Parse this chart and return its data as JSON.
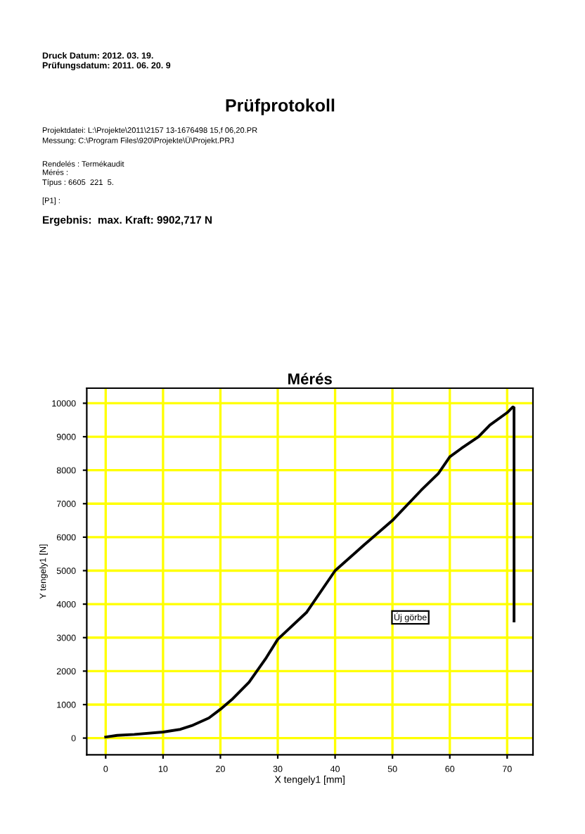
{
  "chart_data": {
    "type": "line",
    "title": "Mérés",
    "xlabel": "X tengely1 [mm]",
    "ylabel": "Y tengely1 [N]",
    "annotations": [
      "Druck Datum: 2012. 03. 19.",
      "Prüfungsdatum: 2011. 06. 20. 9",
      "Prüfprotokoll",
      "Projektdatei: L:\\Projekte\\2011\\2157 13-1676498 15,f 06,20.PR",
      "Messung: C:\\Program Files\\920\\Projekte\\Ü\\Projekt.PRJ",
      "Rendelés : Termékaudit",
      "Mérés :",
      "Típus : 6605  221  5.",
      "[P1] :",
      "Ergebnis:  max. Kraft: 9902,717 N",
      "Új görbe"
    ],
    "series": [
      {
        "color": "#000000",
        "x": [
          0,
          2,
          5,
          10,
          13,
          15,
          18,
          20,
          22,
          25,
          28,
          30,
          35,
          40,
          45,
          50,
          55,
          58,
          60,
          62,
          65,
          67,
          70,
          71,
          71.2,
          71.2
        ],
        "values": [
          30,
          80,
          110,
          180,
          260,
          370,
          600,
          860,
          1150,
          1670,
          2400,
          2950,
          3750,
          5000,
          5760,
          6500,
          7400,
          7900,
          8400,
          8650,
          9000,
          9350,
          9720,
          9890,
          9870,
          3500
        ]
      }
    ],
    "xlim": [
      -3.3,
      74.5
    ],
    "ylim": [
      -500,
      10450
    ],
    "xticks": [
      0,
      10,
      20,
      30,
      40,
      50,
      60,
      70
    ],
    "yticks": [
      0,
      1000,
      2000,
      3000,
      4000,
      5000,
      6000,
      7000,
      8000,
      9000,
      10000
    ],
    "grid": true,
    "marker": "none",
    "line_style": "solid",
    "legend": false
  }
}
